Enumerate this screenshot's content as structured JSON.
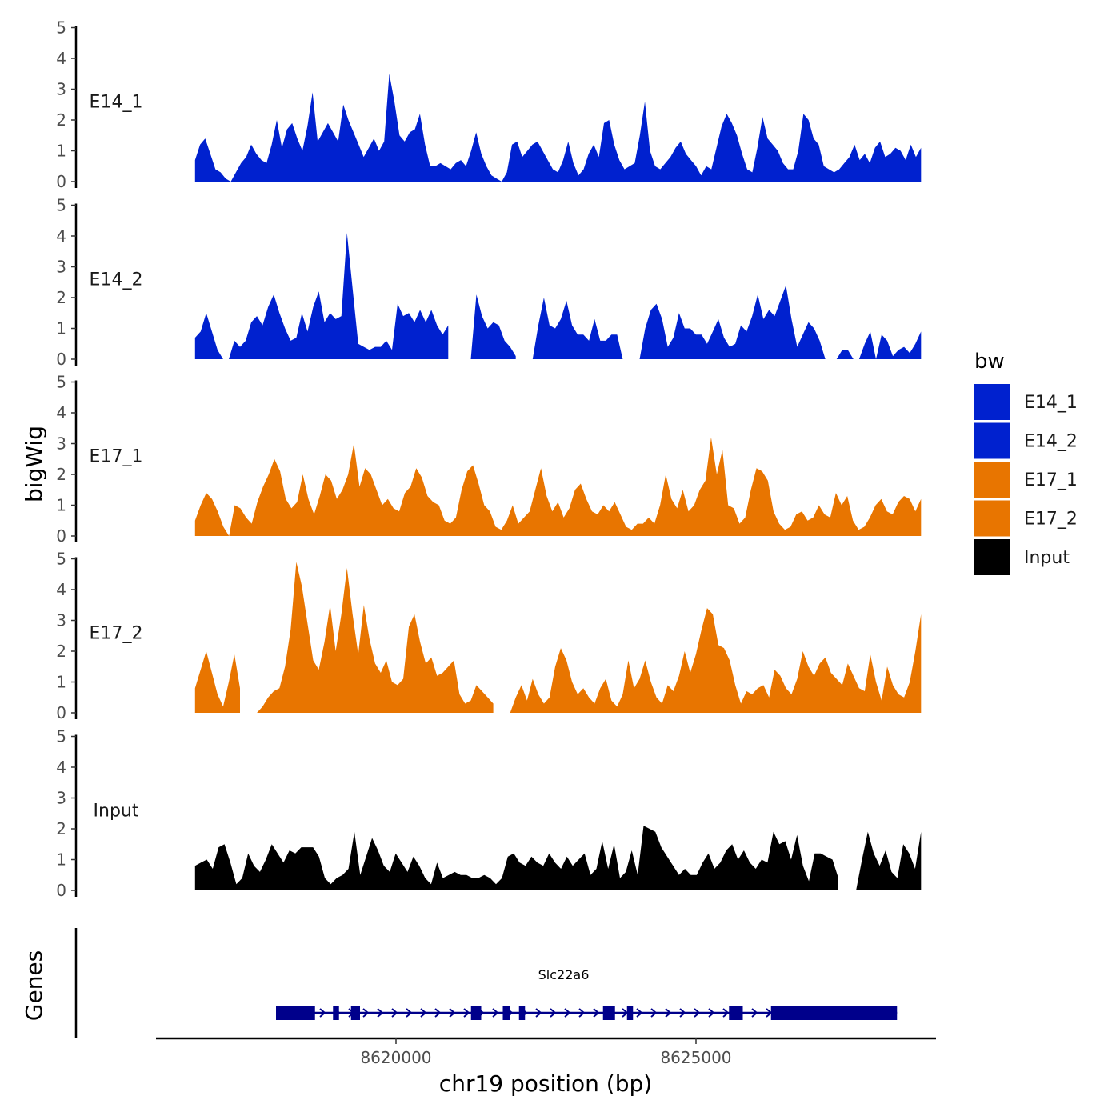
{
  "chart_data": {
    "type": "area",
    "ylabel": "bigWig",
    "xlabel": "chr19 position (bp)",
    "genes_label": "Genes",
    "xlim": [
      8616000,
      8629000
    ],
    "ylim": [
      0,
      5
    ],
    "yticks": [
      "0",
      "1",
      "2",
      "3",
      "4",
      "5"
    ],
    "xticks": [
      {
        "value": 8620000,
        "label": "8620000"
      },
      {
        "value": 8625000,
        "label": "8625000"
      }
    ],
    "legend": {
      "title": "bw",
      "entries": [
        {
          "name": "E14_1",
          "color": "#0021cf"
        },
        {
          "name": "E14_2",
          "color": "#0021cf"
        },
        {
          "name": "E17_1",
          "color": "#e87500"
        },
        {
          "name": "E17_2",
          "color": "#e87500"
        },
        {
          "name": "Input",
          "color": "#000000"
        }
      ]
    },
    "signal_x": {
      "start": 8616650,
      "end": 8628750
    },
    "series": [
      {
        "name": "E14_1",
        "color": "#0021cf",
        "values": [
          0.7,
          1.2,
          1.4,
          0.9,
          0.4,
          0.3,
          0.1,
          0.0,
          0.3,
          0.6,
          0.8,
          1.2,
          0.9,
          0.7,
          0.6,
          1.2,
          2.0,
          1.1,
          1.7,
          1.9,
          1.4,
          1.0,
          1.8,
          2.9,
          1.3,
          1.6,
          1.9,
          1.6,
          1.3,
          2.5,
          2.0,
          1.6,
          1.2,
          0.8,
          1.1,
          1.4,
          1.0,
          1.3,
          3.5,
          2.6,
          1.5,
          1.3,
          1.6,
          1.7,
          2.2,
          1.2,
          0.5,
          0.5,
          0.6,
          0.5,
          0.4,
          0.6,
          0.7,
          0.5,
          1.0,
          1.6,
          0.9,
          0.5,
          0.2,
          0.1,
          0.0,
          0.3,
          1.2,
          1.3,
          0.8,
          1.0,
          1.2,
          1.3,
          1.0,
          0.7,
          0.4,
          0.3,
          0.7,
          1.3,
          0.6,
          0.2,
          0.4,
          0.9,
          1.2,
          0.8,
          1.9,
          2.0,
          1.2,
          0.7,
          0.4,
          0.5,
          0.6,
          1.5,
          2.6,
          1.0,
          0.5,
          0.4,
          0.6,
          0.8,
          1.1,
          1.3,
          0.9,
          0.7,
          0.5,
          0.2,
          0.5,
          0.4,
          1.1,
          1.8,
          2.2,
          1.9,
          1.5,
          0.9,
          0.4,
          0.3,
          1.1,
          2.1,
          1.4,
          1.2,
          1.0,
          0.6,
          0.4,
          0.4,
          1.0,
          2.2,
          2.0,
          1.4,
          1.2,
          0.5,
          0.4,
          0.3,
          0.4,
          0.6,
          0.8,
          1.2,
          0.7,
          0.9,
          0.6,
          1.1,
          1.3,
          0.8,
          0.9,
          1.1,
          1.0,
          0.7,
          1.2,
          0.8,
          1.1
        ]
      },
      {
        "name": "E14_2",
        "color": "#0021cf",
        "values": [
          0.7,
          0.9,
          1.5,
          0.9,
          0.3,
          0.0,
          0.0,
          0.6,
          0.4,
          0.6,
          1.2,
          1.4,
          1.1,
          1.7,
          2.1,
          1.5,
          1.0,
          0.6,
          0.7,
          1.5,
          0.9,
          1.7,
          2.2,
          1.2,
          1.5,
          1.3,
          1.4,
          4.1,
          2.3,
          0.5,
          0.4,
          0.3,
          0.4,
          0.4,
          0.6,
          0.3,
          1.8,
          1.4,
          1.5,
          1.2,
          1.6,
          1.2,
          1.6,
          1.1,
          0.8,
          1.1,
          0.0,
          0.0,
          0.0,
          0.0,
          2.1,
          1.4,
          1.0,
          1.2,
          1.1,
          0.6,
          0.4,
          0.1,
          0.0,
          0.0,
          0.0,
          1.1,
          2.0,
          1.1,
          1.0,
          1.3,
          1.9,
          1.1,
          0.8,
          0.8,
          0.6,
          1.3,
          0.6,
          0.6,
          0.8,
          0.8,
          0.0,
          0.0,
          0.0,
          0.0,
          1.0,
          1.6,
          1.8,
          1.3,
          0.4,
          0.7,
          1.5,
          1.0,
          1.0,
          0.8,
          0.8,
          0.5,
          0.9,
          1.3,
          0.7,
          0.4,
          0.5,
          1.1,
          0.9,
          1.4,
          2.1,
          1.3,
          1.6,
          1.4,
          1.9,
          2.4,
          1.3,
          0.4,
          0.8,
          1.2,
          1.0,
          0.6,
          0.0,
          0.0,
          0.0,
          0.3,
          0.3,
          0.0,
          0.0,
          0.5,
          0.9,
          0.0,
          0.8,
          0.6,
          0.1,
          0.3,
          0.4,
          0.2,
          0.5,
          0.9
        ]
      },
      {
        "name": "E17_1",
        "color": "#e87500",
        "values": [
          0.5,
          1.0,
          1.4,
          1.2,
          0.8,
          0.3,
          0.0,
          1.0,
          0.9,
          0.6,
          0.4,
          1.1,
          1.6,
          2.0,
          2.5,
          2.1,
          1.2,
          0.9,
          1.1,
          2.0,
          1.2,
          0.7,
          1.3,
          2.0,
          1.8,
          1.2,
          1.5,
          2.0,
          3.0,
          1.6,
          2.2,
          2.0,
          1.5,
          1.0,
          1.2,
          0.9,
          0.8,
          1.4,
          1.6,
          2.2,
          1.9,
          1.3,
          1.1,
          1.0,
          0.5,
          0.4,
          0.6,
          1.5,
          2.1,
          2.3,
          1.7,
          1.0,
          0.8,
          0.3,
          0.2,
          0.5,
          1.0,
          0.4,
          0.6,
          0.8,
          1.5,
          2.2,
          1.3,
          0.8,
          1.1,
          0.6,
          0.9,
          1.5,
          1.7,
          1.2,
          0.8,
          0.7,
          1.0,
          0.8,
          1.1,
          0.7,
          0.3,
          0.2,
          0.4,
          0.4,
          0.6,
          0.4,
          1.0,
          2.0,
          1.2,
          0.9,
          1.5,
          0.8,
          1.0,
          1.5,
          1.8,
          3.2,
          2.0,
          2.8,
          1.0,
          0.9,
          0.4,
          0.6,
          1.5,
          2.2,
          2.1,
          1.8,
          0.8,
          0.4,
          0.2,
          0.3,
          0.7,
          0.8,
          0.5,
          0.6,
          1.0,
          0.7,
          0.6,
          1.4,
          1.0,
          1.3,
          0.5,
          0.2,
          0.3,
          0.6,
          1.0,
          1.2,
          0.8,
          0.7,
          1.1,
          1.3,
          1.2,
          0.8,
          1.2
        ]
      },
      {
        "name": "E17_2",
        "color": "#e87500",
        "values": [
          0.8,
          1.4,
          2.0,
          1.3,
          0.6,
          0.2,
          1.0,
          1.9,
          0.8,
          0.0,
          0.0,
          0.0,
          0.2,
          0.5,
          0.7,
          0.8,
          1.5,
          2.7,
          4.9,
          4.1,
          2.9,
          1.7,
          1.4,
          2.3,
          3.5,
          2.0,
          3.2,
          4.7,
          3.2,
          1.9,
          3.5,
          2.4,
          1.6,
          1.3,
          1.7,
          1.0,
          0.9,
          1.1,
          2.8,
          3.2,
          2.3,
          1.6,
          1.8,
          1.2,
          1.3,
          1.5,
          1.7,
          0.6,
          0.3,
          0.4,
          0.9,
          0.7,
          0.5,
          0.3,
          0.0,
          0.0,
          0.0,
          0.5,
          0.9,
          0.4,
          1.1,
          0.6,
          0.3,
          0.5,
          1.5,
          2.1,
          1.7,
          1.0,
          0.6,
          0.8,
          0.5,
          0.3,
          0.8,
          1.1,
          0.4,
          0.2,
          0.6,
          1.7,
          0.8,
          1.1,
          1.7,
          1.0,
          0.5,
          0.3,
          0.9,
          0.7,
          1.2,
          2.0,
          1.3,
          1.9,
          2.7,
          3.4,
          3.2,
          2.2,
          2.1,
          1.7,
          0.9,
          0.3,
          0.7,
          0.6,
          0.8,
          0.9,
          0.5,
          1.4,
          1.2,
          0.8,
          0.6,
          1.1,
          2.0,
          1.5,
          1.2,
          1.6,
          1.8,
          1.3,
          1.1,
          0.9,
          1.6,
          1.2,
          0.8,
          0.7,
          1.9,
          1.0,
          0.4,
          1.5,
          0.9,
          0.6,
          0.5,
          1.0,
          2.0,
          3.2
        ]
      },
      {
        "name": "Input",
        "color": "#000000",
        "values": [
          0.8,
          0.9,
          1.0,
          0.7,
          1.4,
          1.5,
          0.9,
          0.2,
          0.4,
          1.2,
          0.8,
          0.6,
          1.0,
          1.5,
          1.2,
          0.9,
          1.3,
          1.2,
          1.4,
          1.4,
          1.4,
          1.1,
          0.4,
          0.2,
          0.4,
          0.5,
          0.7,
          1.9,
          0.5,
          1.1,
          1.7,
          1.3,
          0.8,
          0.6,
          1.2,
          0.9,
          0.6,
          1.1,
          0.8,
          0.4,
          0.2,
          0.9,
          0.4,
          0.5,
          0.6,
          0.5,
          0.5,
          0.4,
          0.4,
          0.5,
          0.4,
          0.2,
          0.4,
          1.1,
          1.2,
          0.9,
          0.8,
          1.1,
          0.9,
          0.8,
          1.2,
          0.9,
          0.7,
          1.1,
          0.8,
          1.0,
          1.2,
          0.5,
          0.7,
          1.6,
          0.7,
          1.5,
          0.4,
          0.6,
          1.3,
          0.5,
          2.1,
          2.0,
          1.9,
          1.4,
          1.1,
          0.8,
          0.5,
          0.7,
          0.5,
          0.5,
          0.9,
          1.2,
          0.7,
          0.9,
          1.3,
          1.5,
          1.0,
          1.3,
          0.9,
          0.7,
          1.0,
          0.9,
          1.9,
          1.5,
          1.6,
          1.0,
          1.8,
          0.8,
          0.3,
          1.2,
          1.2,
          1.1,
          1.0,
          0.4,
          0.0,
          0.0,
          0.0,
          1.0,
          1.9,
          1.2,
          0.8,
          1.3,
          0.6,
          0.4,
          1.5,
          1.2,
          0.7,
          1.9
        ]
      }
    ],
    "gaps": {
      "E14_2": [
        [
          45,
          49
        ],
        [
          57,
          60
        ],
        [
          76,
          79
        ],
        [
          113,
          114
        ],
        [
          116,
          117
        ],
        [
          120,
          121
        ]
      ],
      "E17_2": [
        [
          8,
          11
        ],
        [
          53,
          56
        ]
      ],
      "Input": [
        [
          109,
          112
        ]
      ]
    },
    "gene": {
      "name": "Slc22a6",
      "color": "#00008b",
      "start": 8618000,
      "end": 8628350,
      "strand": "+",
      "exons": [
        [
          8618000,
          8618650
        ],
        [
          8618950,
          8619050
        ],
        [
          8619250,
          8619400
        ],
        [
          8621250,
          8621420
        ],
        [
          8621780,
          8621900
        ],
        [
          8622050,
          8622150
        ],
        [
          8623450,
          8623650
        ],
        [
          8623850,
          8623950
        ],
        [
          8625550,
          8625780
        ],
        [
          8626250,
          8628350
        ]
      ]
    }
  }
}
